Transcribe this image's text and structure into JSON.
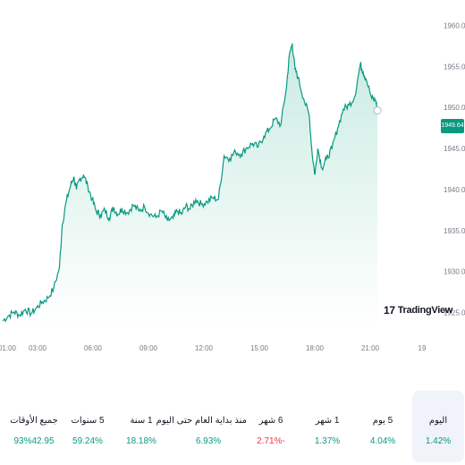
{
  "chart_data": {
    "type": "area",
    "y_ticks": [
      "1960.00",
      "1955.00",
      "1950.00",
      "1945.00",
      "1940.00",
      "1935.00",
      "1930.00",
      "1925.00"
    ],
    "x_ticks": [
      "01:00",
      "03:00",
      "06:00",
      "09:00",
      "12:00",
      "15:00",
      "18:00",
      "21:00",
      "19"
    ],
    "ylim": [
      1923,
      1962
    ],
    "last_price": "1949.64",
    "colors": {
      "line": "#089981",
      "fill_top": "#c8ebe1",
      "fill_bottom": "#ffffff",
      "badge": "#089981"
    },
    "series_points": [
      [
        "00:00",
        1924.0
      ],
      [
        "00:20",
        1924.6
      ],
      [
        "00:40",
        1925.1
      ],
      [
        "01:00",
        1924.7
      ],
      [
        "01:20",
        1925.4
      ],
      [
        "01:40",
        1924.9
      ],
      [
        "02:00",
        1925.6
      ],
      [
        "02:20",
        1926.3
      ],
      [
        "02:40",
        1926.8
      ],
      [
        "03:00",
        1928.0
      ],
      [
        "03:20",
        1930.5
      ],
      [
        "03:30",
        1935.8
      ],
      [
        "03:45",
        1938.7
      ],
      [
        "04:00",
        1940.6
      ],
      [
        "04:10",
        1941.5
      ],
      [
        "04:20",
        1940.0
      ],
      [
        "04:30",
        1941.2
      ],
      [
        "04:45",
        1941.8
      ],
      [
        "05:00",
        1940.4
      ],
      [
        "05:15",
        1938.8
      ],
      [
        "05:30",
        1937.3
      ],
      [
        "05:45",
        1936.9
      ],
      [
        "06:00",
        1937.5
      ],
      [
        "06:15",
        1936.5
      ],
      [
        "06:30",
        1937.8
      ],
      [
        "06:45",
        1937.0
      ],
      [
        "07:00",
        1937.6
      ],
      [
        "07:20",
        1937.2
      ],
      [
        "07:40",
        1938.1
      ],
      [
        "08:00",
        1937.4
      ],
      [
        "08:20",
        1937.9
      ],
      [
        "08:40",
        1937.0
      ],
      [
        "09:00",
        1936.6
      ],
      [
        "09:20",
        1937.4
      ],
      [
        "09:40",
        1936.2
      ],
      [
        "10:00",
        1936.5
      ],
      [
        "10:15",
        1937.4
      ],
      [
        "10:30",
        1937.0
      ],
      [
        "10:45",
        1938.0
      ],
      [
        "11:00",
        1937.6
      ],
      [
        "11:20",
        1938.8
      ],
      [
        "11:40",
        1938.2
      ],
      [
        "12:00",
        1938.5
      ],
      [
        "12:20",
        1939.0
      ],
      [
        "12:40",
        1938.8
      ],
      [
        "13:00",
        1944.1
      ],
      [
        "13:20",
        1943.8
      ],
      [
        "13:40",
        1944.6
      ],
      [
        "14:00",
        1944.3
      ],
      [
        "14:20",
        1945.1
      ],
      [
        "14:40",
        1945.6
      ],
      [
        "15:00",
        1945.2
      ],
      [
        "15:20",
        1946.5
      ],
      [
        "15:40",
        1947.4
      ],
      [
        "16:00",
        1948.6
      ],
      [
        "16:20",
        1947.9
      ],
      [
        "16:40",
        1952.6
      ],
      [
        "16:50",
        1956.4
      ],
      [
        "17:00",
        1957.8
      ],
      [
        "17:10",
        1954.6
      ],
      [
        "17:20",
        1953.7
      ],
      [
        "17:40",
        1951.1
      ],
      [
        "18:00",
        1949.0
      ],
      [
        "18:10",
        1944.4
      ],
      [
        "18:20",
        1941.8
      ],
      [
        "18:30",
        1945.0
      ],
      [
        "18:45",
        1942.6
      ],
      [
        "19:00",
        1943.7
      ],
      [
        "19:20",
        1945.0
      ],
      [
        "19:40",
        1947.5
      ],
      [
        "20:00",
        1949.8
      ],
      [
        "20:20",
        1950.3
      ],
      [
        "20:40",
        1951.3
      ],
      [
        "21:00",
        1955.3
      ],
      [
        "21:10",
        1954.3
      ],
      [
        "21:20",
        1953.5
      ],
      [
        "21:40",
        1951.1
      ],
      [
        "21:55",
        1950.8
      ],
      [
        "22:00",
        1949.64
      ]
    ]
  },
  "brand": {
    "logo_mark": "17",
    "logo_text": "TradingView"
  },
  "periods": [
    {
      "label": "جميع الأوقات",
      "value": "93%42.95",
      "color": "#089981"
    },
    {
      "label": "5 سنوات",
      "value": "59.24%",
      "color": "#089981"
    },
    {
      "label": "1 سنة",
      "value": "18.18%",
      "color": "#089981"
    },
    {
      "label": "منذ بداية العام حتى اليوم",
      "value": "6.93%",
      "color": "#089981"
    },
    {
      "label": "6 شهر",
      "value": "2.71%-",
      "color": "#f23645"
    },
    {
      "label": "1 شهر",
      "value": "1.37%",
      "color": "#089981"
    },
    {
      "label": "5 يوم",
      "value": "4.04%",
      "color": "#089981"
    },
    {
      "label": "اليوم",
      "value": "1.42%",
      "color": "#089981"
    }
  ]
}
